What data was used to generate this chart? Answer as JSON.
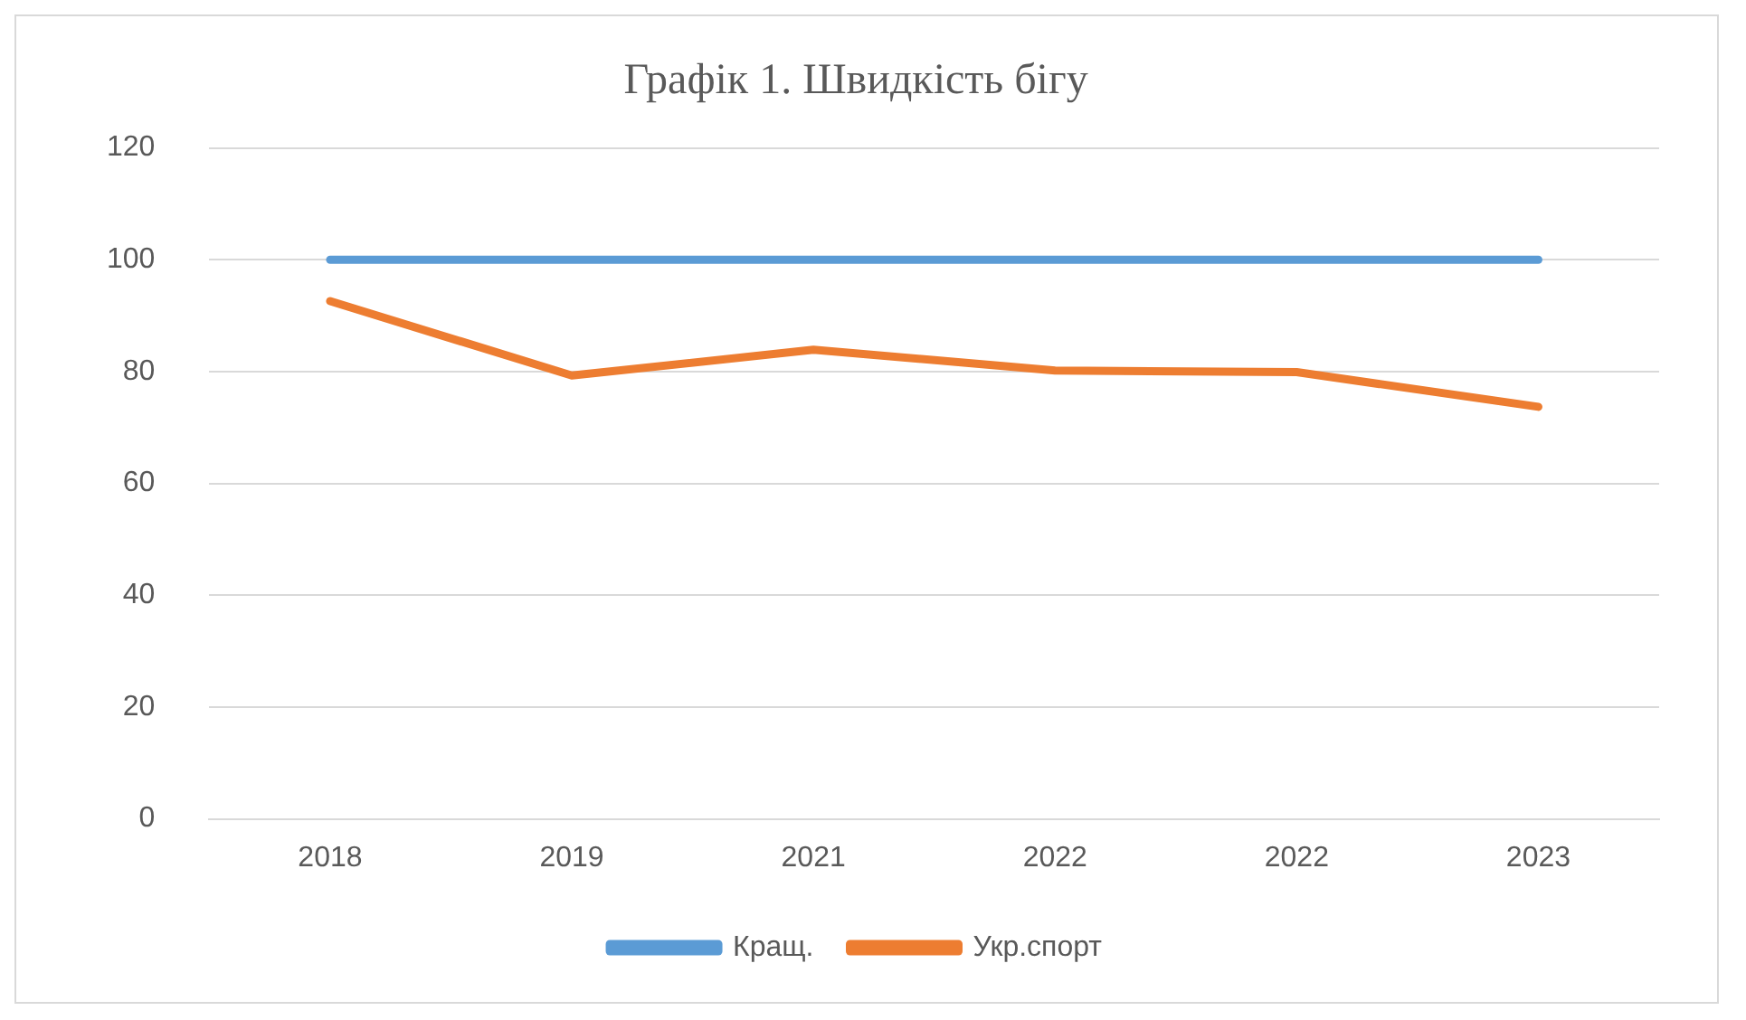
{
  "chart_data": {
    "type": "line",
    "title": "Графік 1. Швидкість бігу",
    "categories": [
      "2018",
      "2019",
      "2021",
      "2022",
      "2022",
      "2023"
    ],
    "series": [
      {
        "name": "Кращ.",
        "color": "#5b9bd5",
        "values": [
          100,
          100,
          100,
          100,
          100,
          100
        ]
      },
      {
        "name": "Укр.спорт",
        "color": "#ed7d31",
        "values": [
          92.6,
          79.3,
          83.9,
          80.2,
          79.9,
          73.7
        ]
      }
    ],
    "ylim": [
      0,
      120
    ],
    "yticks": [
      0,
      20,
      40,
      60,
      80,
      100,
      120
    ],
    "grid": "y",
    "legend": "bottom",
    "marker": "none",
    "line_style": "solid"
  }
}
